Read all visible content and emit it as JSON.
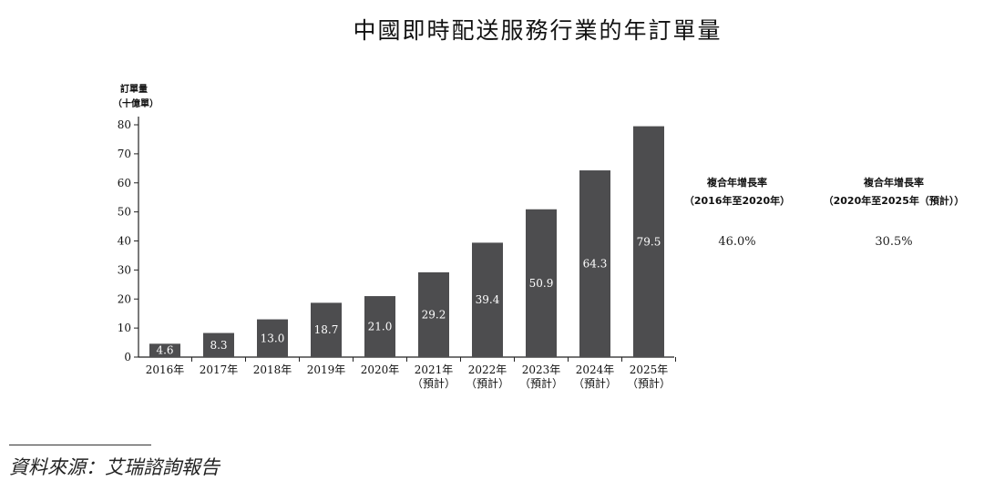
{
  "chart_data": {
    "type": "bar",
    "title": "中國即時配送服務行業的年訂單量",
    "ylabel_line1": "訂單量",
    "ylabel_line2": "（十億單）",
    "ylim": [
      0,
      80
    ],
    "yticks": [
      "0",
      "10",
      "20",
      "30",
      "40",
      "50",
      "60",
      "70",
      "80"
    ],
    "categories": [
      {
        "year": "2016年",
        "note": ""
      },
      {
        "year": "2017年",
        "note": ""
      },
      {
        "year": "2018年",
        "note": ""
      },
      {
        "year": "2019年",
        "note": ""
      },
      {
        "year": "2020年",
        "note": ""
      },
      {
        "year": "2021年",
        "note": "（預計）"
      },
      {
        "year": "2022年",
        "note": "（預計）"
      },
      {
        "year": "2023年",
        "note": "（預計）"
      },
      {
        "year": "2024年",
        "note": "（預計）"
      },
      {
        "year": "2025年",
        "note": "（預計）"
      }
    ],
    "values": [
      4.6,
      8.3,
      13.0,
      18.7,
      21.0,
      29.2,
      39.4,
      50.9,
      64.3,
      79.5
    ],
    "value_labels": [
      "4.6",
      "8.3",
      "13.0",
      "18.7",
      "21.0",
      "29.2",
      "39.4",
      "50.9",
      "64.3",
      "79.5"
    ],
    "bar_color": "#4d4d4f",
    "grid": false
  },
  "cagr": [
    {
      "title": "複合年增長率",
      "period": "（2016年至2020年）",
      "value": "46.0%"
    },
    {
      "title": "複合年增長率",
      "period": "（2020年至2025年（預計））",
      "value": "30.5%"
    }
  ],
  "source": "資料來源：艾瑞諮詢報告"
}
